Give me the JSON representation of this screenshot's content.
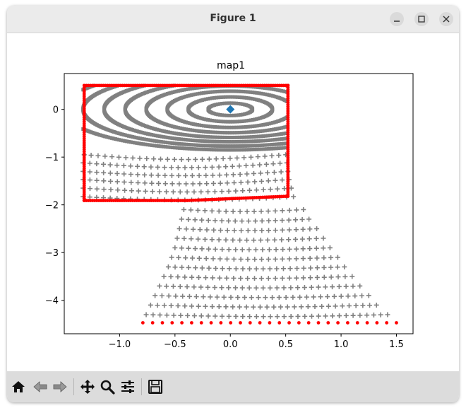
{
  "window": {
    "title": "Figure 1",
    "controls": [
      "minimize-icon",
      "maximize-icon",
      "close-icon"
    ]
  },
  "toolbar": {
    "buttons": [
      "home-icon",
      "back-icon",
      "forward-icon",
      "pan-icon",
      "zoom-icon",
      "configure-subplots-icon",
      "save-icon"
    ]
  },
  "chart_data": {
    "type": "scatter",
    "title": "map1",
    "xlabel": "",
    "ylabel": "",
    "xlim": [
      -1.5,
      1.65
    ],
    "ylim": [
      -4.7,
      0.75
    ],
    "xticks": [
      -1.0,
      -0.5,
      0.0,
      0.5,
      1.0,
      1.5
    ],
    "xtick_labels": [
      "−1.0",
      "−0.5",
      "0.0",
      "0.5",
      "1.0",
      "1.5"
    ],
    "yticks": [
      0,
      -1,
      -2,
      -3,
      -4
    ],
    "ytick_labels": [
      "0",
      "−1",
      "−2",
      "−3",
      "−4"
    ],
    "colors": {
      "grey": "#808080",
      "red": "#ff0000",
      "blue": "#1f77b4"
    },
    "series": [
      {
        "name": "center",
        "marker": "diamond",
        "color": "#1f77b4",
        "points": [
          [
            0.0,
            0.0
          ]
        ]
      },
      {
        "name": "ellipse-rings",
        "marker": "square",
        "color": "#808080",
        "center": [
          0.0,
          0.0
        ],
        "clip_x": [
          -1.33,
          0.52
        ],
        "clip_y_top": 0.5,
        "rings": [
          {
            "a": 0.2,
            "b": 0.13
          },
          {
            "a": 0.38,
            "b": 0.26
          },
          {
            "a": 0.57,
            "b": 0.38
          },
          {
            "a": 0.76,
            "b": 0.49
          },
          {
            "a": 0.95,
            "b": 0.59
          },
          {
            "a": 1.14,
            "b": 0.68
          },
          {
            "a": 1.33,
            "b": 0.77
          },
          {
            "a": 1.52,
            "b": 0.85
          }
        ]
      },
      {
        "name": "plus-grid",
        "marker": "plus",
        "color": "#808080",
        "rows": [
          {
            "y": -0.95,
            "x0": -1.32,
            "x1": 0.5,
            "sag": 0.1
          },
          {
            "y": -1.12,
            "x0": -1.33,
            "x1": 0.51,
            "sag": 0.1
          },
          {
            "y": -1.3,
            "x0": -1.33,
            "x1": 0.52,
            "sag": 0.09
          },
          {
            "y": -1.47,
            "x0": -1.33,
            "x1": 0.53,
            "sag": 0.09
          },
          {
            "y": -1.65,
            "x0": -1.33,
            "x1": 0.55,
            "sag": 0.08
          },
          {
            "y": -1.83,
            "x0": -1.33,
            "x1": 0.57,
            "sag": 0.07
          },
          {
            "y": -2.1,
            "x0": -0.42,
            "x1": 0.66,
            "sag": 0.04
          },
          {
            "y": -2.3,
            "x0": -0.44,
            "x1": 0.71,
            "sag": 0.04
          },
          {
            "y": -2.5,
            "x0": -0.46,
            "x1": 0.78,
            "sag": 0.04
          },
          {
            "y": -2.7,
            "x0": -0.48,
            "x1": 0.84,
            "sag": 0.04
          },
          {
            "y": -2.9,
            "x0": -0.5,
            "x1": 0.9,
            "sag": 0.04
          },
          {
            "y": -3.1,
            "x0": -0.53,
            "x1": 0.97,
            "sag": 0.04
          },
          {
            "y": -3.3,
            "x0": -0.56,
            "x1": 1.03,
            "sag": 0.04
          },
          {
            "y": -3.5,
            "x0": -0.6,
            "x1": 1.1,
            "sag": 0.04
          },
          {
            "y": -3.7,
            "x0": -0.64,
            "x1": 1.17,
            "sag": 0.04
          },
          {
            "y": -3.9,
            "x0": -0.68,
            "x1": 1.25,
            "sag": 0.04
          },
          {
            "y": -4.1,
            "x0": -0.72,
            "x1": 1.32,
            "sag": 0.04
          },
          {
            "y": -4.3,
            "x0": -0.76,
            "x1": 1.42,
            "sag": 0.04
          }
        ]
      },
      {
        "name": "boundary",
        "marker": "dot",
        "color": "#ff0000",
        "polyline": [
          [
            -1.3,
            0.5
          ],
          [
            0.52,
            0.5
          ],
          [
            0.52,
            -1.82
          ],
          [
            -0.39,
            -1.91
          ],
          [
            -1.32,
            -1.91
          ],
          [
            -1.32,
            0.5
          ]
        ],
        "bottom_row": {
          "y": -4.47,
          "x0": -0.79,
          "x1": 1.5,
          "count": 27
        }
      }
    ]
  }
}
